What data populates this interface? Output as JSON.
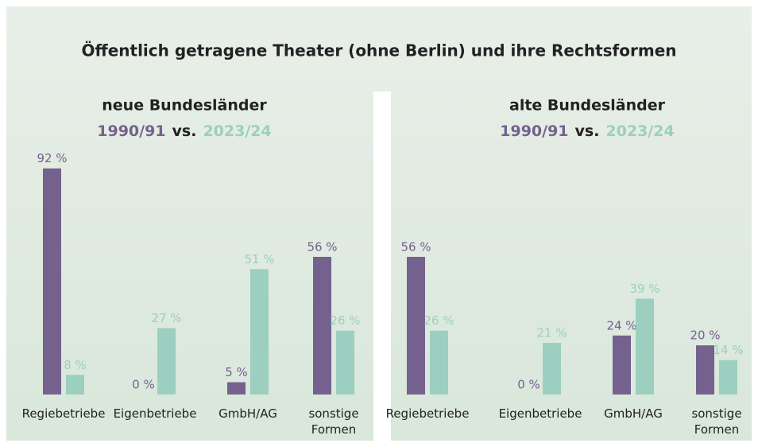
{
  "title": "Öffentlich getragene Theater (ohne Berlin) und ihre Rechtsformen",
  "chart_data": [
    {
      "type": "bar",
      "title": "neue Bundesländer",
      "legend_separator": "vs.",
      "categories": [
        "Regiebetriebe",
        "Eigenbetriebe",
        "GmbH/AG",
        "sonstige Formen"
      ],
      "series": [
        {
          "name": "1990/91",
          "color": "#75618e",
          "values": [
            92,
            0,
            5,
            56
          ],
          "value_labels": [
            "92 %",
            "0 %",
            "5 %",
            "56 %"
          ]
        },
        {
          "name": "2023/24",
          "color": "#9ccfbf",
          "values": [
            8,
            27,
            51,
            26
          ],
          "value_labels": [
            "8 %",
            "27 %",
            "51 %",
            "26 %"
          ]
        }
      ]
    },
    {
      "type": "bar",
      "title": "alte Bundesländer",
      "legend_separator": "vs.",
      "categories": [
        "Regiebetriebe",
        "Eigenbetriebe",
        "GmbH/AG",
        "sonstige Formen"
      ],
      "series": [
        {
          "name": "1990/91",
          "color": "#75618e",
          "values": [
            56,
            0,
            24,
            20
          ],
          "value_labels": [
            "56 %",
            "0 %",
            "24 %",
            "20 %"
          ]
        },
        {
          "name": "2023/24",
          "color": "#9ccfbf",
          "values": [
            26,
            21,
            39,
            14
          ],
          "value_labels": [
            "26 %",
            "21 %",
            "39 %",
            "14 %"
          ]
        }
      ]
    }
  ]
}
